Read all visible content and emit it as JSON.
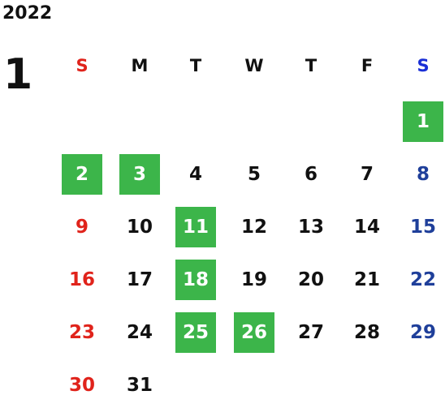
{
  "calendar": {
    "year": "2022",
    "month": "1",
    "weekdays": [
      "S",
      "M",
      "T",
      "W",
      "T",
      "F",
      "S"
    ],
    "weeks": [
      [
        "",
        "",
        "",
        "",
        "",
        "",
        "1"
      ],
      [
        "2",
        "3",
        "4",
        "5",
        "6",
        "7",
        "8"
      ],
      [
        "9",
        "10",
        "11",
        "12",
        "13",
        "14",
        "15"
      ],
      [
        "16",
        "17",
        "18",
        "19",
        "20",
        "21",
        "22"
      ],
      [
        "23",
        "24",
        "25",
        "26",
        "27",
        "28",
        "29"
      ],
      [
        "30",
        "31",
        "",
        "",
        "",
        "",
        ""
      ]
    ],
    "highlighted_days": [
      "1",
      "2",
      "3",
      "11",
      "18",
      "25",
      "26"
    ]
  },
  "colors": {
    "highlight": "#3cb54a",
    "sunday": "#e0231b",
    "saturday": "#1f3f9a",
    "saturday_header": "#1a2fd6",
    "text": "#111111"
  }
}
